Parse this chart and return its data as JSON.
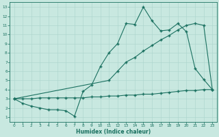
{
  "xlabel": "Humidex (Indice chaleur)",
  "background_color": "#c8e8e0",
  "grid_color": "#aad4cc",
  "line_color": "#1a7060",
  "xlim": [
    -0.5,
    23.5
  ],
  "ylim": [
    0.5,
    13.5
  ],
  "xticks": [
    0,
    1,
    2,
    3,
    4,
    5,
    6,
    7,
    8,
    9,
    10,
    11,
    12,
    13,
    14,
    15,
    16,
    17,
    18,
    19,
    20,
    21,
    22,
    23
  ],
  "yticks": [
    1,
    2,
    3,
    4,
    5,
    6,
    7,
    8,
    9,
    10,
    11,
    12,
    13
  ],
  "line1_x": [
    0,
    1,
    2,
    3,
    4,
    5,
    6,
    7,
    8,
    9,
    10,
    11,
    12,
    13,
    14,
    15,
    16,
    17,
    18,
    19,
    20,
    21,
    22,
    23
  ],
  "line1_y": [
    3,
    2.5,
    2.2,
    2.0,
    1.8,
    1.8,
    1.7,
    1.1,
    3.8,
    4.5,
    6.5,
    8.0,
    9.0,
    11.2,
    11.1,
    13.0,
    11.5,
    10.4,
    10.5,
    11.2,
    10.3,
    6.3,
    5.1,
    4.0
  ],
  "line2_x": [
    0,
    11,
    12,
    13,
    14,
    15,
    16,
    17,
    18,
    19,
    20,
    21,
    22,
    23
  ],
  "line2_y": [
    3,
    5.0,
    6.0,
    7.0,
    7.5,
    8.2,
    8.8,
    9.4,
    9.9,
    10.5,
    11.0,
    11.2,
    11.0,
    4.0
  ],
  "line3_x": [
    0,
    1,
    2,
    3,
    4,
    5,
    6,
    7,
    8,
    9,
    10,
    11,
    12,
    13,
    14,
    15,
    16,
    17,
    18,
    19,
    20,
    21,
    22,
    23
  ],
  "line3_y": [
    3,
    3.0,
    3.0,
    3.1,
    3.1,
    3.1,
    3.1,
    3.1,
    3.1,
    3.2,
    3.2,
    3.3,
    3.3,
    3.4,
    3.4,
    3.5,
    3.5,
    3.6,
    3.7,
    3.8,
    3.9,
    3.9,
    4.0,
    4.0
  ]
}
